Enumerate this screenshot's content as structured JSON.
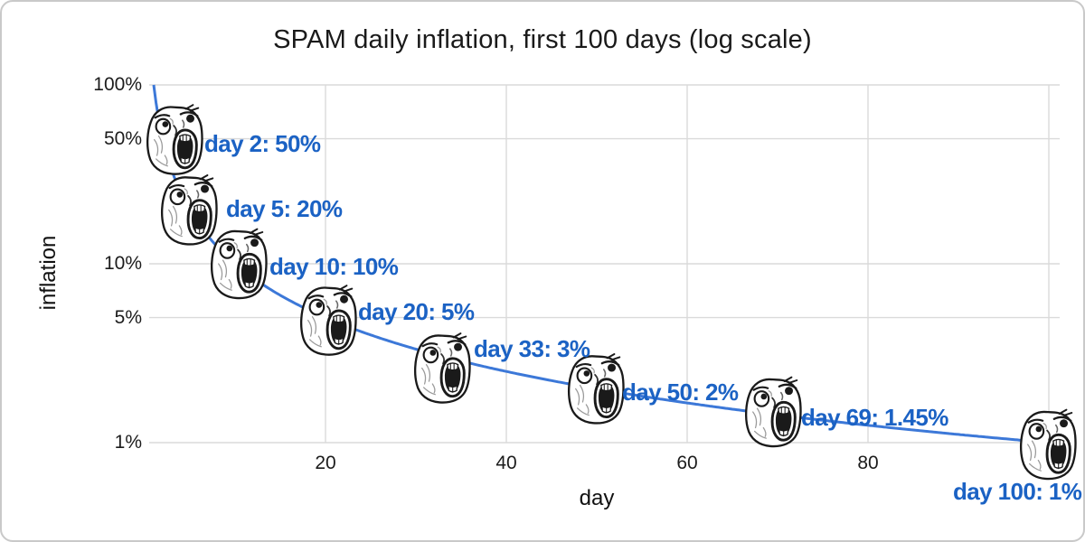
{
  "title": "SPAM daily inflation, first 100 days (log scale)",
  "chart_data": {
    "type": "line",
    "title": "SPAM daily inflation, first 100 days (log scale)",
    "xlabel": "day",
    "ylabel": "inflation",
    "x_axis": {
      "scale": "linear",
      "min": 1,
      "max": 100,
      "ticks": [
        20,
        40,
        60,
        80
      ]
    },
    "y_axis": {
      "scale": "log",
      "min": 1,
      "max": 100,
      "ticks": [
        {
          "value": 100,
          "label": "100%"
        },
        {
          "value": 50,
          "label": "50%"
        },
        {
          "value": 10,
          "label": "10%"
        },
        {
          "value": 5,
          "label": "5%"
        },
        {
          "value": 1,
          "label": "1%"
        }
      ]
    },
    "grid": true,
    "legend": "none",
    "series": [
      {
        "name": "SPAM daily inflation",
        "relation": "inflation_pct = 100 / day",
        "marker": "lol-face-meme",
        "points": [
          {
            "day": 2,
            "value_pct": 50,
            "label": "day 2: 50%"
          },
          {
            "day": 5,
            "value_pct": 20,
            "label": "day 5: 20%"
          },
          {
            "day": 10,
            "value_pct": 10,
            "label": "day 10: 10%"
          },
          {
            "day": 20,
            "value_pct": 5,
            "label": "day 20: 5%"
          },
          {
            "day": 33,
            "value_pct": 3,
            "label": "day 33: 3%"
          },
          {
            "day": 50,
            "value_pct": 2,
            "label": "day 50: 2%"
          },
          {
            "day": 69,
            "value_pct": 1.45,
            "label": "day 69: 1.45%"
          },
          {
            "day": 100,
            "value_pct": 1,
            "label": "day 100: 1%"
          }
        ]
      }
    ],
    "colors": {
      "line": "#3c78d8",
      "annotation": "#1b62c4",
      "gridline": "#dadada",
      "axis_text": "#1c1c1c"
    }
  }
}
